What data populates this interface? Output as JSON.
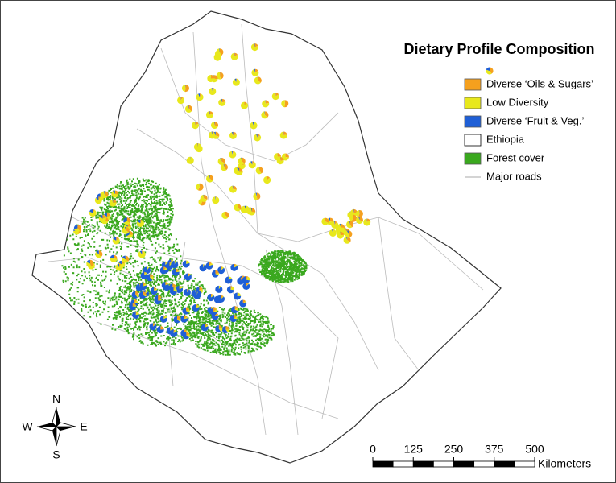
{
  "legend": {
    "title": "Dietary Profile Composition",
    "items": [
      {
        "label": "Diverse ‘Oils & Sugars’",
        "color": "#f5a01e",
        "swatch": "fill"
      },
      {
        "label": "Low Diversity",
        "color": "#e8e81c",
        "swatch": "fill"
      },
      {
        "label": "Diverse ‘Fruit & Veg.’",
        "color": "#1f5fd6",
        "swatch": "fill"
      },
      {
        "label": "Ethiopia",
        "color": "#000000",
        "swatch": "outline"
      },
      {
        "label": "Forest cover",
        "color": "#3aa81e",
        "swatch": "fill"
      },
      {
        "label": "Major roads",
        "color": "#bbbbbb",
        "swatch": "line"
      }
    ]
  },
  "compass": {
    "north": "N",
    "south": "S",
    "east": "E",
    "west": "W"
  },
  "scale_bar": {
    "ticks": [
      0,
      125,
      250,
      375,
      500
    ],
    "unit": "Kilometers"
  }
}
